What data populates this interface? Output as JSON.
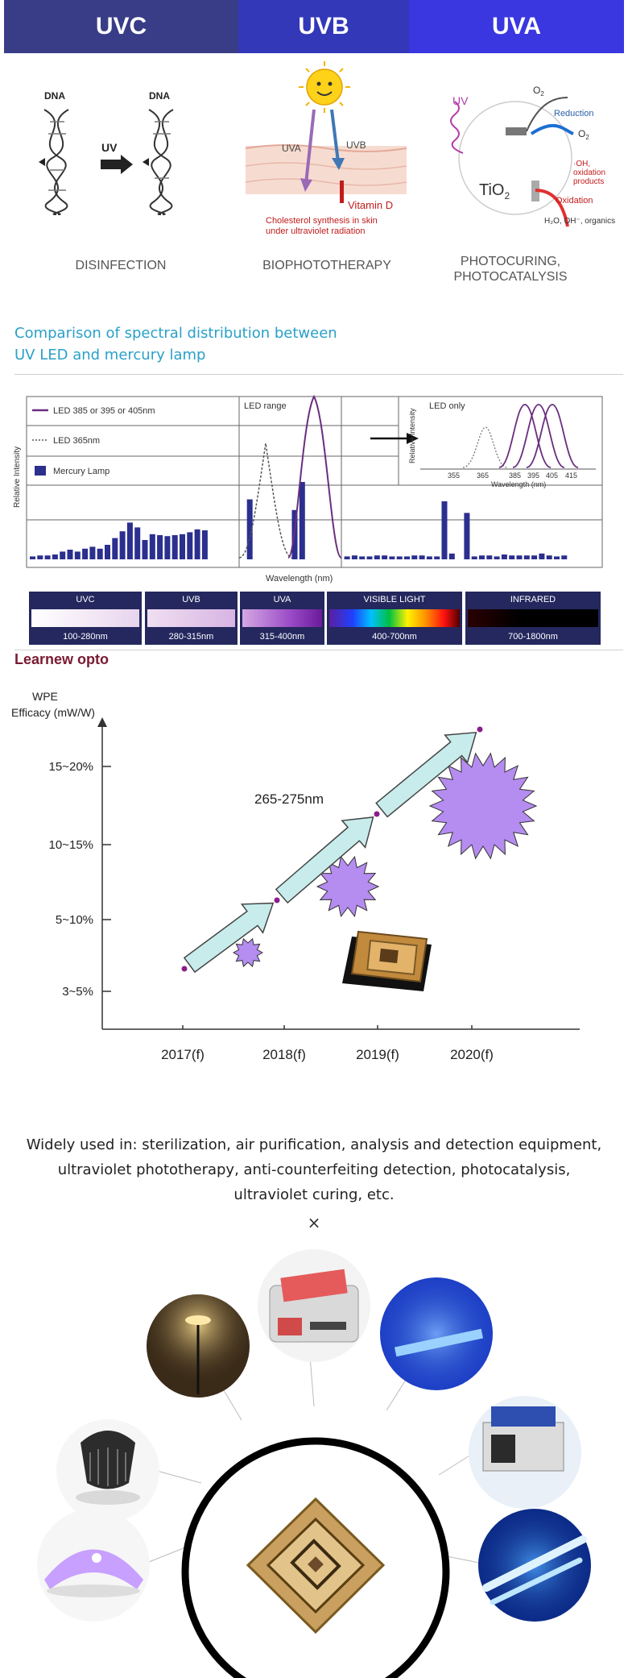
{
  "header": {
    "bands": [
      {
        "label": "UVC",
        "color": "#393c86"
      },
      {
        "label": "UVB",
        "color": "#3338b8"
      },
      {
        "label": "UVA",
        "color": "#3a36e0"
      }
    ]
  },
  "uses": {
    "disinfection": {
      "label": "DISINFECTION",
      "dna_left": "DNA",
      "dna_right": "DNA",
      "arrow_label": "UV"
    },
    "biophototherapy": {
      "label": "BIOPHOTOTHERAPY",
      "uva": "UVA",
      "uvb": "UVB",
      "vitamin": "Vitamin D",
      "caption_1": "Cholesterol synthesis in skin",
      "caption_2": "under ultraviolet radiation"
    },
    "photocuring": {
      "label_1": "PHOTOCURING,",
      "label_2": "PHOTOCATALYSIS",
      "uv": "UV",
      "tio2": "TiO",
      "tio2_sub": "2",
      "o2": "O",
      "o2_sub": "2",
      "reduction": "Reduction",
      "o2minus": "O",
      "o2minus_sub": "2",
      "oh_1": "·OH,",
      "oh_2": "oxidation",
      "oh_3": "products",
      "oxidation": "Oxidation",
      "organics": "H₂O, OH⁻, organics"
    }
  },
  "spectral": {
    "title_1": "Comparison of spectral distribution between",
    "title_2": "UV LED and mercury lamp",
    "legend": [
      "LED 385 or 395 or 405nm",
      "LED 365nm",
      "Mercury Lamp"
    ],
    "led_range": "LED range",
    "led_only": "LED only",
    "ylabel": "Relative Intensity",
    "xlabel": "Wavelength (nm)",
    "inset_ylabel": "Relative Intensity",
    "inset_xlabel": "Wavelength (nm)",
    "inset_ticks": [
      "355",
      "365",
      "385",
      "395",
      "405",
      "415"
    ],
    "colors": {
      "purple": "#6a2e7e",
      "navy": "#2b2f8e"
    }
  },
  "bands": [
    {
      "name": "UVC",
      "range": "100-280nm"
    },
    {
      "name": "UVB",
      "range": "280-315nm"
    },
    {
      "name": "UVA",
      "range": "315-400nm"
    },
    {
      "name": "VISIBLE LIGHT",
      "range": "400-700nm"
    },
    {
      "name": "INFRARED",
      "range": "700-1800nm"
    }
  ],
  "brand": "Learnew opto",
  "chart_data": {
    "type": "line",
    "title": "265-275nm",
    "ylabel_1": "WPE",
    "ylabel_2": "Efficacy (mW/W)",
    "categories": [
      "2017(f)",
      "2018(f)",
      "2019(f)",
      "2020(f)"
    ],
    "y_ticks": [
      "3~5%",
      "5~10%",
      "10~15%",
      "15~20%"
    ],
    "series": [
      {
        "values": [
          0,
          0.86,
          1.91,
          2.91
        ]
      }
    ],
    "ylim": [
      0,
      3
    ],
    "colors": {
      "arrow_fill": "#c8ecec",
      "arrow_stroke": "#444444",
      "burst": "#b58cf0",
      "dot": "#8a1e8a"
    }
  },
  "applications": {
    "text": "Widely used in: sterilization, air purification, analysis and detection equipment, ultraviolet phototherapy, anti-counterfeiting detection, photocatalysis, ultraviolet curing, etc.",
    "close": "×"
  }
}
